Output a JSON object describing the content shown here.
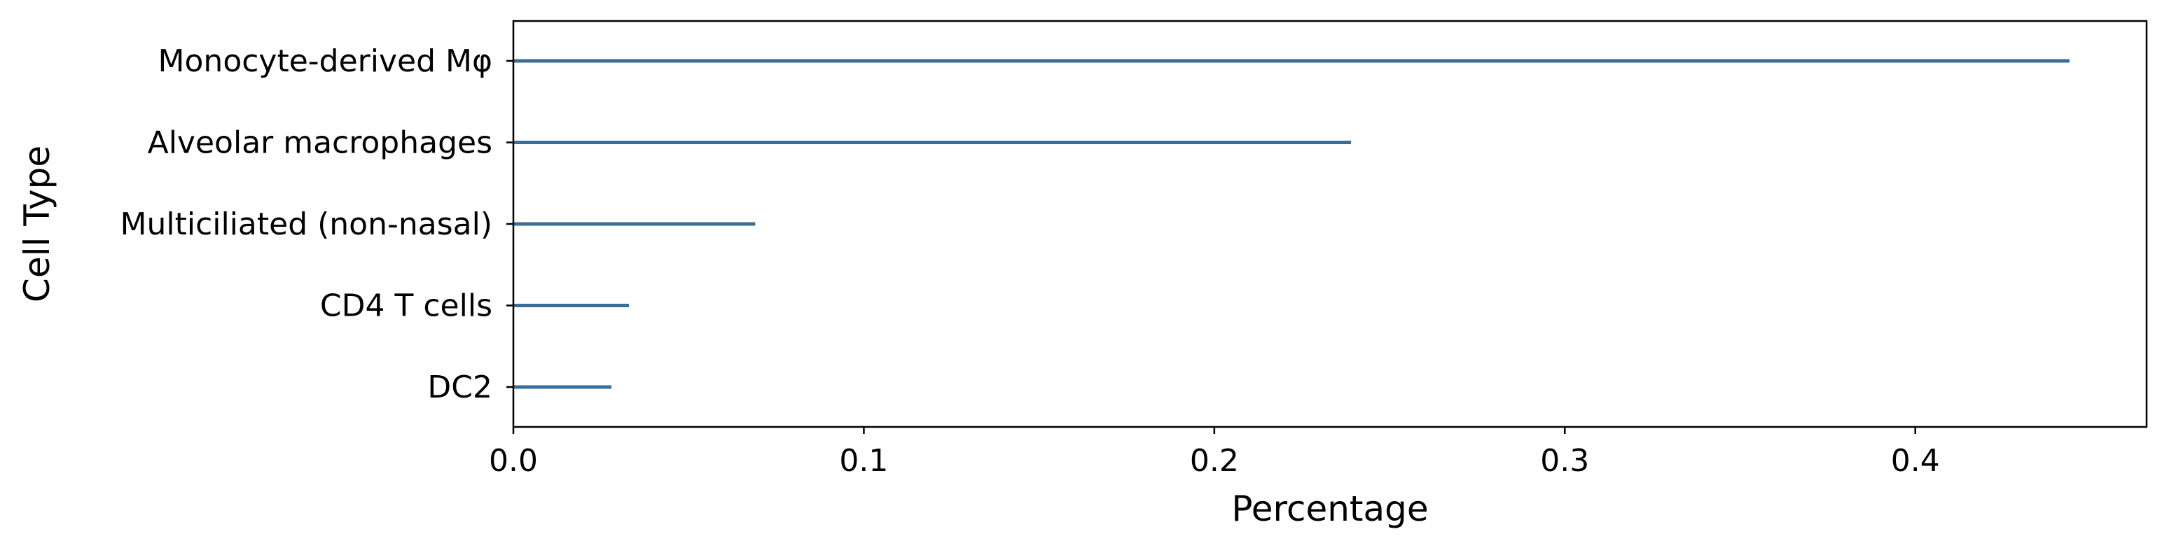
{
  "chart_data": {
    "type": "bar",
    "orientation": "horizontal",
    "categories": [
      "Monocyte-derived Mφ",
      "Alveolar macrophages",
      "Multiciliated (non-nasal)",
      "CD4 T cells",
      "DC2"
    ],
    "values": [
      0.444,
      0.239,
      0.069,
      0.033,
      0.028
    ],
    "xlabel": "Percentage",
    "ylabel": "Cell Type",
    "xlim": [
      0.0,
      0.466
    ],
    "xticks": [
      0.0,
      0.1,
      0.2,
      0.3,
      0.4
    ],
    "xtick_labels": [
      "0.0",
      "0.1",
      "0.2",
      "0.3",
      "0.4"
    ],
    "grid": false,
    "bar_color": "#3a6e96"
  }
}
